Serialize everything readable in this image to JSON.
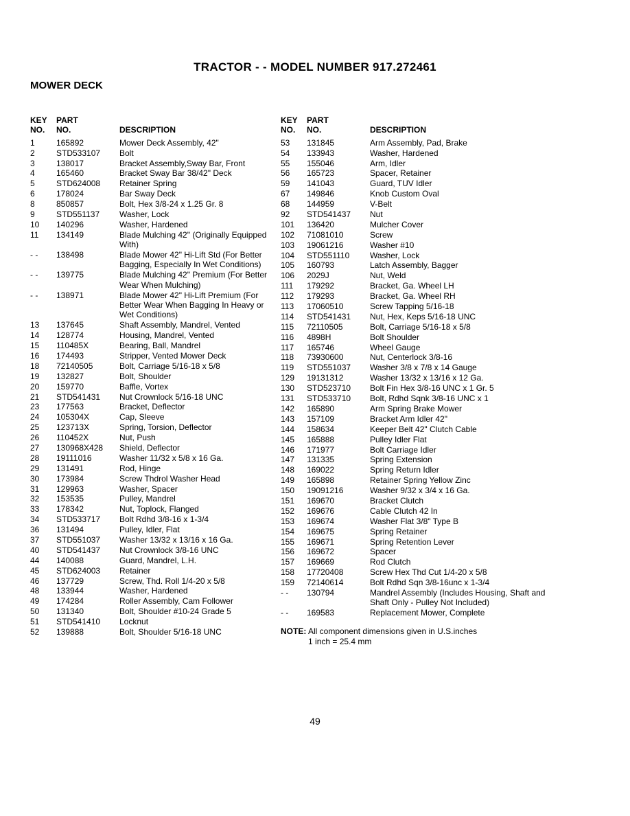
{
  "title": "TRACTOR - - MODEL NUMBER  917.272461",
  "section": "MOWER DECK",
  "page_number": "49",
  "watermark_text": "",
  "headers": {
    "key_no_1": "KEY",
    "key_no_2": "NO.",
    "part_no_1": "PART",
    "part_no_2": "NO.",
    "desc": "DESCRIPTION"
  },
  "left_rows": [
    {
      "k": "1",
      "p": "165892",
      "d": "Mower Deck Assembly, 42\""
    },
    {
      "k": "2",
      "p": "STD533107",
      "d": "Bolt"
    },
    {
      "k": "3",
      "p": "138017",
      "d": "Bracket Assembly,Sway Bar, Front"
    },
    {
      "k": "4",
      "p": "165460",
      "d": "Bracket Sway Bar 38/42\" Deck"
    },
    {
      "k": "5",
      "p": "STD624008",
      "d": "Retainer Spring"
    },
    {
      "k": "6",
      "p": "178024",
      "d": "Bar Sway Deck"
    },
    {
      "k": "8",
      "p": "850857",
      "d": "Bolt, Hex  3/8-24 x 1.25 Gr. 8"
    },
    {
      "k": "9",
      "p": "STD551137",
      "d": "Washer, Lock"
    },
    {
      "k": "10",
      "p": "140296",
      "d": "Washer, Hardened"
    },
    {
      "k": "11",
      "p": "134149",
      "d": "Blade Mulching 42\" (Originally Equipped With)"
    },
    {
      "k": "- -",
      "p": "138498",
      "d": "Blade Mower 42\" Hi-Lift Std (For Better Bagging, Especially In Wet Conditions)"
    },
    {
      "k": "- -",
      "p": "139775",
      "d": "Blade Mulching 42\" Premium (For Better Wear When Mulching)"
    },
    {
      "k": "- -",
      "p": "138971",
      "d": "Blade Mower 42\" Hi-Lift Premium (For Better Wear When Bagging In Heavy or Wet Conditions)"
    },
    {
      "k": "13",
      "p": "137645",
      "d": "Shaft Assembly, Mandrel, Vented"
    },
    {
      "k": "14",
      "p": "128774",
      "d": "Housing, Mandrel, Vented"
    },
    {
      "k": "15",
      "p": "110485X",
      "d": "Bearing, Ball, Mandrel"
    },
    {
      "k": "16",
      "p": "174493",
      "d": "Stripper, Vented Mower Deck"
    },
    {
      "k": "18",
      "p": "72140505",
      "d": "Bolt, Carriage  5/16-18 x 5/8"
    },
    {
      "k": "19",
      "p": "132827",
      "d": "Bolt, Shoulder"
    },
    {
      "k": "20",
      "p": "159770",
      "d": "Baffle, Vortex"
    },
    {
      "k": "21",
      "p": "STD541431",
      "d": "Nut Crownlock 5/16-18 UNC"
    },
    {
      "k": "23",
      "p": "177563",
      "d": "Bracket, Deflector"
    },
    {
      "k": "24",
      "p": "105304X",
      "d": "Cap, Sleeve"
    },
    {
      "k": "25",
      "p": "123713X",
      "d": "Spring, Torsion, Deflector"
    },
    {
      "k": "26",
      "p": "110452X",
      "d": "Nut, Push"
    },
    {
      "k": "27",
      "p": "130968X428",
      "d": "Shield, Deflector"
    },
    {
      "k": "28",
      "p": "19111016",
      "d": "Washer  11/32 x 5/8 x 16 Ga."
    },
    {
      "k": "29",
      "p": "131491",
      "d": "Rod, Hinge"
    },
    {
      "k": "30",
      "p": "173984",
      "d": "Screw Thdrol Washer Head"
    },
    {
      "k": "31",
      "p": "129963",
      "d": "Washer, Spacer"
    },
    {
      "k": "32",
      "p": "153535",
      "d": "Pulley, Mandrel"
    },
    {
      "k": "33",
      "p": "178342",
      "d": "Nut, Toplock, Flanged"
    },
    {
      "k": "34",
      "p": "STD533717",
      "d": "Bolt Rdhd 3/8-16 x 1-3/4"
    },
    {
      "k": "36",
      "p": "131494",
      "d": "Pulley, Idler, Flat"
    },
    {
      "k": "37",
      "p": "STD551037",
      "d": "Washer  13/32 x 13/16 x 16 Ga."
    },
    {
      "k": "40",
      "p": "STD541437",
      "d": "Nut Crownlock 3/8-16 UNC"
    },
    {
      "k": "44",
      "p": "140088",
      "d": "Guard, Mandrel, L.H."
    },
    {
      "k": "45",
      "p": "STD624003",
      "d": "Retainer"
    },
    {
      "k": "46",
      "p": "137729",
      "d": "Screw, Thd. Roll  1/4-20 x 5/8"
    },
    {
      "k": "48",
      "p": "133944",
      "d": "Washer, Hardened"
    },
    {
      "k": "49",
      "p": "174284",
      "d": "Roller Assembly, Cam Follower"
    },
    {
      "k": "50",
      "p": "131340",
      "d": "Bolt, Shoulder  #10-24 Grade 5"
    },
    {
      "k": "51",
      "p": "STD541410",
      "d": "Locknut"
    },
    {
      "k": "52",
      "p": "139888",
      "d": "Bolt, Shoulder  5/16-18 UNC"
    }
  ],
  "right_rows": [
    {
      "k": "53",
      "p": "131845",
      "d": "Arm Assembly, Pad, Brake"
    },
    {
      "k": "54",
      "p": "133943",
      "d": "Washer, Hardened"
    },
    {
      "k": "55",
      "p": "155046",
      "d": "Arm, Idler"
    },
    {
      "k": "56",
      "p": "165723",
      "d": "Spacer, Retainer"
    },
    {
      "k": "59",
      "p": "141043",
      "d": "Guard, TUV Idler"
    },
    {
      "k": "67",
      "p": "149846",
      "d": "Knob Custom Oval"
    },
    {
      "k": "68",
      "p": "144959",
      "d": "V-Belt"
    },
    {
      "k": "92",
      "p": "STD541437",
      "d": "Nut"
    },
    {
      "k": "101",
      "p": "136420",
      "d": "Mulcher Cover"
    },
    {
      "k": "102",
      "p": "71081010",
      "d": "Screw"
    },
    {
      "k": "103",
      "p": "19061216",
      "d": "Washer #10"
    },
    {
      "k": "104",
      "p": "STD551110",
      "d": "Washer, Lock"
    },
    {
      "k": "105",
      "p": "160793",
      "d": "Latch Assembly, Bagger"
    },
    {
      "k": "106",
      "p": "2029J",
      "d": "Nut, Weld"
    },
    {
      "k": "111",
      "p": "179292",
      "d": "Bracket, Ga. Wheel LH"
    },
    {
      "k": "112",
      "p": "179293",
      "d": "Bracket, Ga. Wheel RH"
    },
    {
      "k": "113",
      "p": "17060510",
      "d": "Screw Tapping 5/16-18"
    },
    {
      "k": "114",
      "p": "STD541431",
      "d": "Nut, Hex, Keps 5/16-18 UNC"
    },
    {
      "k": "115",
      "p": "72110505",
      "d": "Bolt, Carriage 5/16-18 x 5/8"
    },
    {
      "k": "116",
      "p": "4898H",
      "d": "Bolt Shoulder"
    },
    {
      "k": "117",
      "p": "165746",
      "d": "Wheel Gauge"
    },
    {
      "k": "118",
      "p": "73930600",
      "d": "Nut, Centerlock 3/8-16"
    },
    {
      "k": "119",
      "p": "STD551037",
      "d": "Washer 3/8 x 7/8 x 14 Gauge"
    },
    {
      "k": "129",
      "p": "19131312",
      "d": "Washer 13/32 x 13/16 x 12 Ga."
    },
    {
      "k": "130",
      "p": "STD523710",
      "d": "Bolt Fin Hex 3/8-16 UNC x 1 Gr. 5"
    },
    {
      "k": "131",
      "p": "STD533710",
      "d": "Bolt, Rdhd Sqnk 3/8-16 UNC x 1"
    },
    {
      "k": "142",
      "p": "165890",
      "d": "Arm Spring Brake Mower"
    },
    {
      "k": "143",
      "p": "157109",
      "d": "Bracket Arm Idler 42\""
    },
    {
      "k": "144",
      "p": "158634",
      "d": "Keeper Belt 42\" Clutch Cable"
    },
    {
      "k": "145",
      "p": "165888",
      "d": "Pulley Idler Flat"
    },
    {
      "k": "146",
      "p": "171977",
      "d": "Bolt Carriage Idler"
    },
    {
      "k": "147",
      "p": "131335",
      "d": "Spring Extension"
    },
    {
      "k": "148",
      "p": "169022",
      "d": "Spring Return Idler"
    },
    {
      "k": "149",
      "p": "165898",
      "d": "Retainer Spring Yellow Zinc"
    },
    {
      "k": "150",
      "p": "19091216",
      "d": "Washer  9/32 x 3/4 x 16 Ga."
    },
    {
      "k": "151",
      "p": "169670",
      "d": "Bracket Clutch"
    },
    {
      "k": "152",
      "p": "169676",
      "d": "Cable Clutch 42 In"
    },
    {
      "k": "153",
      "p": "169674",
      "d": "Washer Flat 3/8\" Type B"
    },
    {
      "k": "154",
      "p": "169675",
      "d": "Spring Retainer"
    },
    {
      "k": "155",
      "p": "169671",
      "d": "Spring Retention Lever"
    },
    {
      "k": "156",
      "p": "169672",
      "d": "Spacer"
    },
    {
      "k": "157",
      "p": "169669",
      "d": "Rod Clutch"
    },
    {
      "k": "158",
      "p": "17720408",
      "d": "Screw Hex Thd Cut 1/4-20 x 5/8"
    },
    {
      "k": "159",
      "p": "72140614",
      "d": "Bolt Rdhd Sqn 3/8-16unc x 1-3/4"
    },
    {
      "k": "- -",
      "p": "130794",
      "d": "Mandrel Assembly (Includes Housing, Shaft and Shaft Only - Pulley Not Included)"
    },
    {
      "k": "- -",
      "p": "169583",
      "d": "Replacement Mower, Complete"
    }
  ],
  "note": {
    "label": "NOTE:",
    "line1": "All component dimensions given in U.S.inches",
    "line2": "1 inch = 25.4 mm"
  }
}
